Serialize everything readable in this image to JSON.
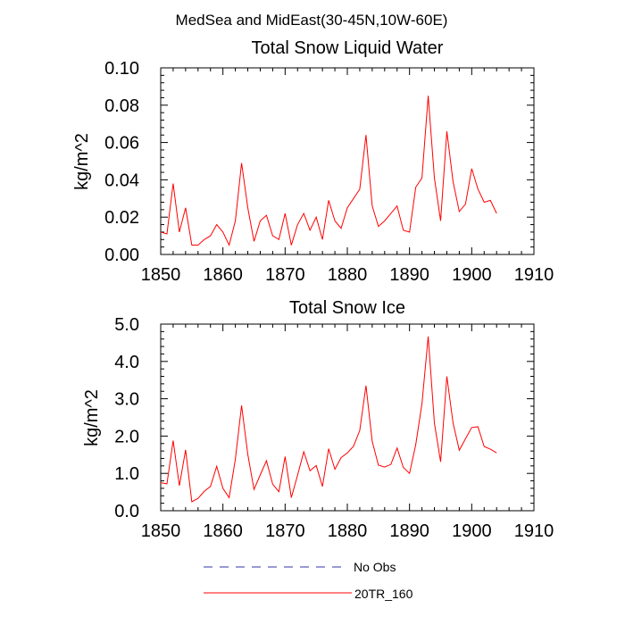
{
  "figure_title": "MedSea and MidEast(30-45N,10W-60E)",
  "legend": [
    {
      "label": "No Obs",
      "color": "#3333aa",
      "style": "dashed"
    },
    {
      "label": "20TR_160",
      "color": "#ff0000",
      "style": "solid"
    }
  ],
  "chart_data": [
    {
      "type": "line",
      "title": "Total Snow Liquid Water",
      "ylabel": "kg/m^2",
      "xlabel": "",
      "xlim": [
        1850,
        1910
      ],
      "ylim": [
        0.0,
        0.1
      ],
      "xticks": [
        1850,
        1860,
        1870,
        1880,
        1890,
        1900,
        1910
      ],
      "yticks": [
        0.0,
        0.02,
        0.04,
        0.06,
        0.08,
        0.1
      ],
      "ytick_labels": [
        "0.00",
        "0.02",
        "0.04",
        "0.06",
        "0.08",
        "0.10"
      ],
      "series": [
        {
          "name": "20TR_160",
          "color": "#ff0000",
          "x": [
            1850,
            1851,
            1852,
            1853,
            1854,
            1855,
            1856,
            1857,
            1858,
            1859,
            1860,
            1861,
            1862,
            1863,
            1864,
            1865,
            1866,
            1867,
            1868,
            1869,
            1870,
            1871,
            1872,
            1873,
            1874,
            1875,
            1876,
            1877,
            1878,
            1879,
            1880,
            1881,
            1882,
            1883,
            1884,
            1885,
            1886,
            1887,
            1888,
            1889,
            1890,
            1891,
            1892,
            1893,
            1894,
            1895,
            1896,
            1897,
            1898,
            1899,
            1900,
            1901,
            1902,
            1903,
            1904
          ],
          "values": [
            0.012,
            0.011,
            0.038,
            0.012,
            0.025,
            0.005,
            0.005,
            0.008,
            0.01,
            0.016,
            0.012,
            0.005,
            0.018,
            0.049,
            0.025,
            0.007,
            0.018,
            0.021,
            0.01,
            0.008,
            0.022,
            0.005,
            0.016,
            0.022,
            0.013,
            0.02,
            0.008,
            0.029,
            0.018,
            0.014,
            0.025,
            0.03,
            0.035,
            0.064,
            0.026,
            0.015,
            0.018,
            0.022,
            0.026,
            0.013,
            0.012,
            0.036,
            0.041,
            0.085,
            0.041,
            0.018,
            0.066,
            0.039,
            0.023,
            0.027,
            0.046,
            0.035,
            0.028,
            0.029,
            0.022
          ]
        },
        {
          "name": "No Obs",
          "color": "#3333aa",
          "x": [],
          "values": []
        }
      ]
    },
    {
      "type": "line",
      "title": "Total Snow Ice",
      "ylabel": "kg/m^2",
      "xlabel": "",
      "xlim": [
        1850,
        1910
      ],
      "ylim": [
        0.0,
        5.0
      ],
      "xticks": [
        1850,
        1860,
        1870,
        1880,
        1890,
        1900,
        1910
      ],
      "yticks": [
        0.0,
        1.0,
        2.0,
        3.0,
        4.0,
        5.0
      ],
      "ytick_labels": [
        "0.0",
        "1.0",
        "2.0",
        "3.0",
        "4.0",
        "5.0"
      ],
      "series": [
        {
          "name": "20TR_160",
          "color": "#ff0000",
          "x": [
            1850,
            1851,
            1852,
            1853,
            1854,
            1855,
            1856,
            1857,
            1858,
            1859,
            1860,
            1861,
            1862,
            1863,
            1864,
            1865,
            1866,
            1867,
            1868,
            1869,
            1870,
            1871,
            1872,
            1873,
            1874,
            1875,
            1876,
            1877,
            1878,
            1879,
            1880,
            1881,
            1882,
            1883,
            1884,
            1885,
            1886,
            1887,
            1888,
            1889,
            1890,
            1891,
            1892,
            1893,
            1894,
            1895,
            1896,
            1897,
            1898,
            1899,
            1900,
            1901,
            1902,
            1903,
            1904
          ],
          "values": [
            0.75,
            0.72,
            1.88,
            0.67,
            1.63,
            0.24,
            0.33,
            0.52,
            0.65,
            1.19,
            0.6,
            0.35,
            1.38,
            2.82,
            1.51,
            0.57,
            0.96,
            1.34,
            0.71,
            0.51,
            1.45,
            0.35,
            0.95,
            1.58,
            1.07,
            1.21,
            0.65,
            1.66,
            1.11,
            1.42,
            1.55,
            1.73,
            2.15,
            3.35,
            1.86,
            1.22,
            1.17,
            1.24,
            1.68,
            1.16,
            1.0,
            1.77,
            2.87,
            4.67,
            2.35,
            1.31,
            3.6,
            2.35,
            1.62,
            1.93,
            2.23,
            2.25,
            1.72,
            1.65,
            1.55
          ]
        },
        {
          "name": "No Obs",
          "color": "#3333aa",
          "x": [],
          "values": []
        }
      ]
    }
  ]
}
